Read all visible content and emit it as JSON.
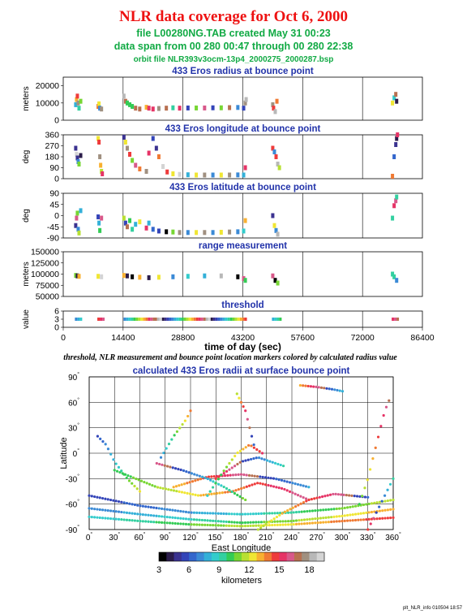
{
  "header": {
    "title": "NLR data coverage for Oct 6, 2000",
    "file_line": "file L00280NG.TAB created May 31 00:23",
    "span_line": "data span from 00 280 00:47 through 00 280 22:38",
    "orbit_line": "orbit file NLR393v3ocm-13p4_2000275_2000287.bsp"
  },
  "caption": "threshold, NLR measurement and bounce point location markers colored by calculated radius value",
  "footer": "plt_NLR_info 010504 18:57",
  "colors": {
    "title": "#ee1111",
    "subtitle": "#11aa44",
    "panel_title": "#2233aa",
    "colormap": [
      "#000000",
      "#2b1c4a",
      "#3b3290",
      "#3344b8",
      "#3366cc",
      "#3a8ad6",
      "#33b0d8",
      "#33cccc",
      "#33d0a0",
      "#33cc55",
      "#77d633",
      "#b8e033",
      "#f0e633",
      "#f8b030",
      "#f07a33",
      "#ee3b3b",
      "#e63366",
      "#d8588a",
      "#b87050",
      "#a09080",
      "#b8b8b8",
      "#d4d4d4"
    ]
  },
  "chart_data": [
    {
      "type": "scatter",
      "title": "433 Eros radius at bounce point",
      "ylabel": "meters",
      "xlim": [
        0,
        86400
      ],
      "ylim": [
        0,
        25000
      ],
      "yticks": [
        0,
        10000,
        20000
      ],
      "xticks": [
        0,
        14400,
        28800,
        43200,
        57600,
        72000,
        86400
      ],
      "points": [
        [
          3000,
          9000
        ],
        [
          3200,
          12000
        ],
        [
          3400,
          14000
        ],
        [
          3600,
          10000
        ],
        [
          3800,
          7000
        ],
        [
          4200,
          11000
        ],
        [
          8400,
          8000
        ],
        [
          8600,
          9500
        ],
        [
          8800,
          7000
        ],
        [
          9200,
          6500
        ],
        [
          14600,
          14000
        ],
        [
          15000,
          11000
        ],
        [
          15400,
          10000
        ],
        [
          16000,
          9000
        ],
        [
          16600,
          8000
        ],
        [
          17400,
          7000
        ],
        [
          18400,
          6500
        ],
        [
          20000,
          7500
        ],
        [
          20600,
          7000
        ],
        [
          21600,
          6500
        ],
        [
          23000,
          6800
        ],
        [
          24800,
          7000
        ],
        [
          26400,
          7200
        ],
        [
          28000,
          7000
        ],
        [
          30000,
          7100
        ],
        [
          32000,
          7100
        ],
        [
          34000,
          7100
        ],
        [
          36000,
          7200
        ],
        [
          38000,
          7200
        ],
        [
          40000,
          7300
        ],
        [
          42000,
          7400
        ],
        [
          43400,
          7000
        ],
        [
          43800,
          10000
        ],
        [
          44000,
          12000
        ],
        [
          50400,
          9000
        ],
        [
          50600,
          7000
        ],
        [
          51000,
          5000
        ],
        [
          51400,
          11000
        ],
        [
          79200,
          10000
        ],
        [
          79600,
          13000
        ],
        [
          80000,
          15000
        ],
        [
          80200,
          11000
        ]
      ]
    },
    {
      "type": "scatter",
      "title": "433 Eros longitude at bounce point",
      "ylabel": "deg",
      "xlim": [
        0,
        86400
      ],
      "ylim": [
        0,
        360
      ],
      "yticks": [
        0,
        90,
        180,
        270,
        360
      ],
      "xticks": [
        0,
        14400,
        28800,
        43200,
        57600,
        72000,
        86400
      ],
      "points": [
        [
          3000,
          250
        ],
        [
          3200,
          200
        ],
        [
          3400,
          170
        ],
        [
          3600,
          140
        ],
        [
          3800,
          120
        ],
        [
          4200,
          190
        ],
        [
          8400,
          330
        ],
        [
          8600,
          300
        ],
        [
          8800,
          180
        ],
        [
          9000,
          110
        ],
        [
          9200,
          60
        ],
        [
          9400,
          40
        ],
        [
          14600,
          340
        ],
        [
          15000,
          300
        ],
        [
          15400,
          250
        ],
        [
          16000,
          200
        ],
        [
          16600,
          150
        ],
        [
          17400,
          110
        ],
        [
          18400,
          80
        ],
        [
          20000,
          60
        ],
        [
          20600,
          210
        ],
        [
          21600,
          330
        ],
        [
          22400,
          250
        ],
        [
          23000,
          180
        ],
        [
          24000,
          100
        ],
        [
          25000,
          55
        ],
        [
          26400,
          40
        ],
        [
          28000,
          35
        ],
        [
          30000,
          32
        ],
        [
          32000,
          30
        ],
        [
          34000,
          30
        ],
        [
          36000,
          30
        ],
        [
          38000,
          30
        ],
        [
          40000,
          30
        ],
        [
          42000,
          31
        ],
        [
          43400,
          30
        ],
        [
          43800,
          90
        ],
        [
          50400,
          250
        ],
        [
          50800,
          220
        ],
        [
          51200,
          180
        ],
        [
          51600,
          120
        ],
        [
          52000,
          90
        ],
        [
          79200,
          20
        ],
        [
          79600,
          180
        ],
        [
          80000,
          280
        ],
        [
          80200,
          330
        ],
        [
          80400,
          360
        ]
      ]
    },
    {
      "type": "scatter",
      "title": "433 Eros latitude at bounce point",
      "ylabel": "deg",
      "xlim": [
        0,
        86400
      ],
      "ylim": [
        -90,
        90
      ],
      "yticks": [
        -90,
        -45,
        0,
        45,
        90
      ],
      "xticks": [
        0,
        14400,
        28800,
        43200,
        57600,
        72000,
        86400
      ],
      "points": [
        [
          3000,
          -40
        ],
        [
          3200,
          -10
        ],
        [
          3400,
          10
        ],
        [
          3600,
          -55
        ],
        [
          3800,
          -70
        ],
        [
          4200,
          20
        ],
        [
          8400,
          -5
        ],
        [
          8600,
          -30
        ],
        [
          8800,
          -60
        ],
        [
          9200,
          -10
        ],
        [
          14600,
          -10
        ],
        [
          15000,
          -30
        ],
        [
          15400,
          -45
        ],
        [
          16000,
          -20
        ],
        [
          16600,
          -55
        ],
        [
          17400,
          -35
        ],
        [
          18400,
          -25
        ],
        [
          20000,
          -50
        ],
        [
          20600,
          -30
        ],
        [
          21600,
          -55
        ],
        [
          23000,
          -62
        ],
        [
          24800,
          -65
        ],
        [
          26400,
          -66
        ],
        [
          28000,
          -68
        ],
        [
          30000,
          -68
        ],
        [
          32000,
          -68
        ],
        [
          34000,
          -68
        ],
        [
          36000,
          -68
        ],
        [
          38000,
          -67
        ],
        [
          40000,
          -66
        ],
        [
          42000,
          -65
        ],
        [
          43400,
          -62
        ],
        [
          43800,
          -20
        ],
        [
          50400,
          0
        ],
        [
          50800,
          -40
        ],
        [
          51200,
          -60
        ],
        [
          51600,
          -75
        ],
        [
          79200,
          -10
        ],
        [
          79600,
          40
        ],
        [
          80000,
          60
        ],
        [
          80200,
          75
        ]
      ]
    },
    {
      "type": "scatter",
      "title": "range measurement",
      "ylabel": "meters",
      "xlim": [
        0,
        86400
      ],
      "ylim": [
        50000,
        150000
      ],
      "yticks": [
        50000,
        75000,
        100000,
        125000,
        150000
      ],
      "xticks": [
        0,
        14400,
        28800,
        43200,
        57600,
        72000,
        86400
      ],
      "points": [
        [
          3000,
          97000
        ],
        [
          3400,
          96000
        ],
        [
          3800,
          95000
        ],
        [
          8400,
          95000
        ],
        [
          9200,
          94000
        ],
        [
          14600,
          97000
        ],
        [
          15400,
          96000
        ],
        [
          16600,
          94000
        ],
        [
          18400,
          93000
        ],
        [
          20600,
          92000
        ],
        [
          23000,
          93000
        ],
        [
          26400,
          94000
        ],
        [
          30000,
          95000
        ],
        [
          34000,
          96000
        ],
        [
          38000,
          96000
        ],
        [
          42000,
          94000
        ],
        [
          43400,
          90000
        ],
        [
          43800,
          86000
        ],
        [
          50400,
          96000
        ],
        [
          51000,
          86000
        ],
        [
          51600,
          80000
        ],
        [
          79200,
          100000
        ],
        [
          79600,
          94000
        ],
        [
          80200,
          86000
        ]
      ]
    },
    {
      "type": "scatter",
      "title": "threshold",
      "xlabel": "time of day (sec)",
      "ylabel": "value",
      "xlim": [
        0,
        86400
      ],
      "ylim": [
        0,
        6
      ],
      "yticks": [
        0,
        3,
        6
      ],
      "xticks": [
        0,
        14400,
        28800,
        43200,
        57600,
        72000,
        86400
      ],
      "segments": [
        [
          2800,
          4400
        ],
        [
          8200,
          9600
        ],
        [
          14500,
          21700
        ],
        [
          22000,
          43500
        ],
        [
          43600,
          44100
        ],
        [
          50200,
          52200
        ],
        [
          79000,
          80600
        ]
      ],
      "value": 3
    },
    {
      "type": "scatter",
      "title": "calculated 433 Eros radii at surface bounce point",
      "xlabel": "East Longitude",
      "ylabel": "Latitude",
      "xlim": [
        0,
        360
      ],
      "ylim": [
        -90,
        90
      ],
      "xticks": [
        0,
        30,
        60,
        90,
        120,
        150,
        180,
        210,
        240,
        270,
        300,
        330,
        360
      ],
      "yticks": [
        -90,
        -60,
        -30,
        0,
        30,
        60,
        90
      ],
      "tracks": [
        [
          [
            0,
            -50
          ],
          [
            60,
            -62
          ],
          [
            120,
            -70
          ],
          [
            180,
            -72
          ],
          [
            240,
            -70
          ],
          [
            300,
            -65
          ],
          [
            360,
            -55
          ]
        ],
        [
          [
            0,
            -65
          ],
          [
            60,
            -72
          ],
          [
            120,
            -78
          ],
          [
            180,
            -82
          ],
          [
            240,
            -80
          ],
          [
            300,
            -74
          ],
          [
            360,
            -66
          ]
        ],
        [
          [
            0,
            -75
          ],
          [
            60,
            -80
          ],
          [
            120,
            -84
          ],
          [
            180,
            -86
          ],
          [
            240,
            -84
          ],
          [
            300,
            -80
          ],
          [
            360,
            -76
          ]
        ],
        [
          [
            30,
            -20
          ],
          [
            80,
            -40
          ],
          [
            130,
            -50
          ],
          [
            170,
            -45
          ],
          [
            200,
            -35
          ],
          [
            230,
            -42
          ],
          [
            260,
            -55
          ]
        ],
        [
          [
            200,
            -90
          ],
          [
            230,
            -70
          ],
          [
            260,
            -55
          ],
          [
            290,
            -48
          ],
          [
            330,
            -52
          ]
        ],
        [
          [
            100,
            -40
          ],
          [
            140,
            -28
          ],
          [
            180,
            -25
          ],
          [
            220,
            -30
          ],
          [
            260,
            -40
          ]
        ],
        [
          [
            150,
            -30
          ],
          [
            180,
            -10
          ],
          [
            200,
            -5
          ],
          [
            230,
            -15
          ]
        ],
        [
          [
            80,
            -12
          ],
          [
            110,
            -20
          ],
          [
            140,
            -30
          ],
          [
            160,
            -40
          ],
          [
            185,
            -55
          ]
        ],
        [
          [
            10,
            20
          ],
          [
            20,
            10
          ],
          [
            30,
            -10
          ],
          [
            45,
            -30
          ],
          [
            60,
            -45
          ]
        ],
        [
          [
            85,
            -5
          ],
          [
            100,
            20
          ],
          [
            115,
            40
          ],
          [
            120,
            50
          ]
        ],
        [
          [
            140,
            -50
          ],
          [
            160,
            -20
          ],
          [
            175,
            0
          ],
          [
            190,
            10
          ],
          [
            205,
            0
          ]
        ],
        [
          [
            320,
            -60
          ],
          [
            330,
            -30
          ],
          [
            335,
            -10
          ],
          [
            340,
            10
          ],
          [
            345,
            30
          ],
          [
            350,
            50
          ],
          [
            355,
            62
          ]
        ],
        [
          [
            175,
            70
          ],
          [
            180,
            60
          ],
          [
            185,
            50
          ],
          [
            190,
            30
          ],
          [
            195,
            10
          ]
        ],
        [
          [
            250,
            80
          ],
          [
            270,
            78
          ],
          [
            290,
            75
          ],
          [
            300,
            73
          ]
        ],
        [
          [
            330,
            -90
          ],
          [
            340,
            -70
          ],
          [
            350,
            -50
          ],
          [
            360,
            -30
          ]
        ]
      ]
    }
  ],
  "colorbar": {
    "min": 3,
    "max": 19.5,
    "ticks": [
      3,
      6,
      9,
      12,
      15,
      18
    ],
    "label": "kilometers"
  }
}
